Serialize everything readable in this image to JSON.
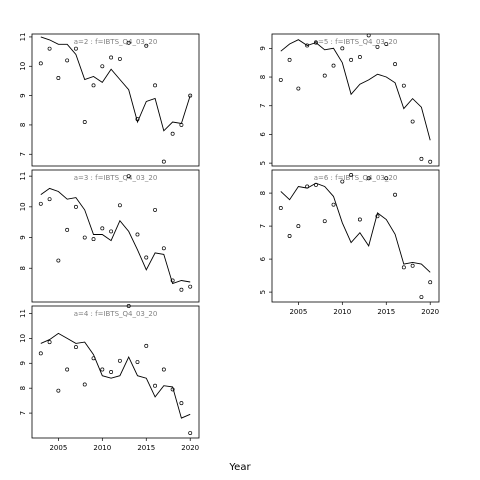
{
  "chart_data": {
    "type": "scatter",
    "xlabel": "Year",
    "xlim": [
      2002,
      2021
    ],
    "x_ticks": [
      2005,
      2010,
      2015,
      2020
    ],
    "style": {
      "points": "#000000",
      "line": "#000000",
      "panel_title": "#808080"
    },
    "panels": [
      {
        "title": "a=2 : f=IBTS_Q4_03_20",
        "ylim": [
          6.6,
          11.1
        ],
        "y_ticks": [
          7,
          8,
          9,
          10,
          11
        ],
        "x": [
          2003,
          2004,
          2005,
          2006,
          2007,
          2008,
          2009,
          2010,
          2011,
          2012,
          2013,
          2014,
          2015,
          2016,
          2017,
          2018,
          2019,
          2020
        ],
        "observed": [
          10.1,
          10.6,
          9.6,
          10.2,
          10.6,
          8.1,
          9.35,
          10.0,
          10.3,
          10.25,
          10.8,
          8.2,
          10.7,
          9.35,
          6.75,
          7.7,
          8.0,
          9.0
        ],
        "fitted": [
          11.0,
          10.9,
          10.75,
          10.75,
          10.4,
          9.55,
          9.65,
          9.45,
          9.9,
          9.55,
          9.2,
          8.1,
          8.8,
          8.9,
          7.8,
          8.1,
          8.05,
          9.0
        ]
      },
      {
        "title": "a=3 : f=IBTS_Q4_03_20",
        "ylim": [
          6.9,
          11.2
        ],
        "y_ticks": [
          8,
          9,
          10,
          11
        ],
        "x": [
          2003,
          2004,
          2005,
          2006,
          2007,
          2008,
          2009,
          2010,
          2011,
          2012,
          2013,
          2014,
          2015,
          2016,
          2017,
          2018,
          2019,
          2020
        ],
        "observed": [
          10.1,
          10.25,
          8.25,
          9.25,
          10.0,
          9.0,
          8.95,
          9.3,
          9.2,
          10.05,
          11.0,
          9.1,
          8.35,
          9.9,
          8.65,
          7.6,
          7.3,
          7.4
        ],
        "fitted": [
          10.4,
          10.6,
          10.5,
          10.25,
          10.3,
          9.9,
          9.1,
          9.1,
          8.9,
          9.55,
          9.2,
          8.6,
          7.95,
          8.5,
          8.45,
          7.5,
          7.6,
          7.55
        ]
      },
      {
        "title": "a=4 : f=IBTS_Q4_03_20",
        "ylim": [
          6.0,
          11.3
        ],
        "y_ticks": [
          7,
          8,
          9,
          10,
          11
        ],
        "x": [
          2003,
          2004,
          2005,
          2006,
          2007,
          2008,
          2009,
          2010,
          2011,
          2012,
          2013,
          2014,
          2015,
          2016,
          2017,
          2018,
          2019,
          2020
        ],
        "observed": [
          9.4,
          9.85,
          7.9,
          8.75,
          9.65,
          8.15,
          9.2,
          8.75,
          8.65,
          9.1,
          11.3,
          9.05,
          9.7,
          8.1,
          8.75,
          7.95,
          7.4,
          6.2
        ],
        "fitted": [
          9.8,
          9.95,
          10.2,
          10.0,
          9.8,
          9.85,
          9.35,
          8.5,
          8.4,
          8.5,
          9.25,
          8.5,
          8.4,
          7.65,
          8.1,
          8.05,
          6.8,
          6.95
        ]
      },
      {
        "title": "a=5 : f=IBTS_Q4_03_20",
        "ylim": [
          4.9,
          9.5
        ],
        "y_ticks": [
          5,
          6,
          7,
          8,
          9
        ],
        "x": [
          2003,
          2004,
          2005,
          2006,
          2007,
          2008,
          2009,
          2010,
          2011,
          2012,
          2013,
          2014,
          2015,
          2016,
          2017,
          2018,
          2019,
          2020
        ],
        "observed": [
          7.9,
          8.6,
          7.6,
          9.1,
          9.2,
          8.05,
          8.4,
          9.0,
          8.6,
          8.7,
          9.45,
          9.05,
          9.15,
          8.45,
          7.7,
          6.45,
          5.15,
          5.05
        ],
        "fitted": [
          8.9,
          9.15,
          9.3,
          9.1,
          9.2,
          8.95,
          9.0,
          8.5,
          7.4,
          7.75,
          7.9,
          8.1,
          8.0,
          7.8,
          6.9,
          7.25,
          6.95,
          5.8
        ]
      },
      {
        "title": "a=6 : f=IBTS_Q4_03_20",
        "ylim": [
          4.7,
          8.7
        ],
        "y_ticks": [
          5,
          6,
          7,
          8
        ],
        "x": [
          2003,
          2004,
          2005,
          2006,
          2007,
          2008,
          2009,
          2010,
          2011,
          2012,
          2013,
          2014,
          2015,
          2016,
          2017,
          2018,
          2019,
          2020
        ],
        "observed": [
          7.55,
          6.7,
          7.0,
          8.2,
          8.25,
          7.15,
          7.65,
          8.35,
          8.55,
          7.2,
          8.45,
          7.3,
          8.45,
          7.95,
          5.75,
          5.8,
          4.85,
          5.3
        ],
        "fitted": [
          8.05,
          7.8,
          8.2,
          8.15,
          8.3,
          8.2,
          7.9,
          7.1,
          6.5,
          6.8,
          6.4,
          7.4,
          7.2,
          6.75,
          5.85,
          5.9,
          5.85,
          5.6
        ]
      }
    ]
  }
}
